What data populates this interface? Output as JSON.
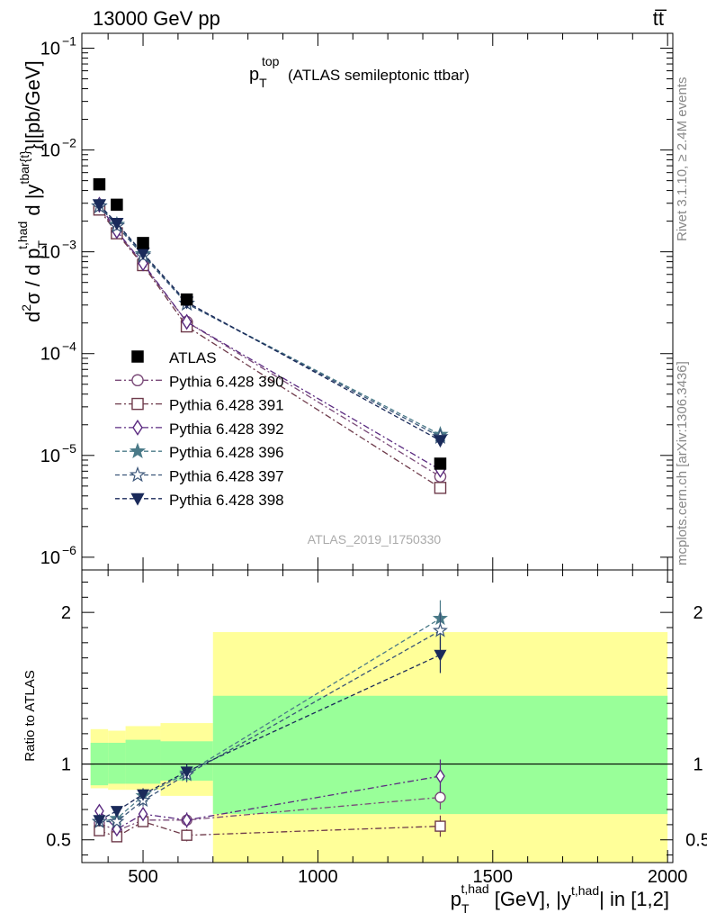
{
  "header": {
    "left": "13000 GeV pp",
    "right": "tt̅"
  },
  "side": {
    "rivet": "Rivet 3.1.10, ≥ 2.4M events",
    "mcplots": "mcplots.cern.ch [arXiv:1306.3436]"
  },
  "chart_data": [
    {
      "type": "scatter",
      "panel": "main",
      "title": "p_T^top (ATLAS semileptonic ttbar)",
      "title_parts": {
        "main": "p",
        "sub": "T",
        "sup": "top",
        "rest": "(ATLAS semileptonic ttbar)"
      },
      "watermark": "ATLAS_2019_I1750330",
      "ylabel": "d²σ / d p_T^{t,had} d |y^{tbar{t}}| [pb/GeV]",
      "ylabel_parts": {
        "a": "d",
        "a_sup": "2",
        "b": "σ /  d p",
        "b_sub": "T",
        "b_sup": "t,had",
        "c": " d  |y",
        "c_sup": "tbar{t}",
        "d": "}|[pb/GeV]"
      },
      "yscale": "log",
      "xlim": [
        325,
        2015
      ],
      "ylim": [
        7.5e-07,
        0.14
      ],
      "yticks": [
        {
          "value": 1e-06,
          "base": "10",
          "exp": "−6"
        },
        {
          "value": 1e-05,
          "base": "10",
          "exp": "−5"
        },
        {
          "value": 0.0001,
          "base": "10",
          "exp": "−4"
        },
        {
          "value": 0.001,
          "base": "10",
          "exp": "−3"
        },
        {
          "value": 0.01,
          "base": "10",
          "exp": "−2"
        },
        {
          "value": 0.1,
          "base": "10",
          "exp": "−1"
        }
      ],
      "legend_position": "middle-left",
      "x": [
        375,
        425,
        500,
        625,
        1350
      ],
      "data": {
        "name": "ATLAS",
        "values": [
          0.0046,
          0.0029,
          0.00122,
          0.00034,
          8.3e-06
        ],
        "color": "#000000",
        "marker": "square-filled"
      },
      "series": [
        {
          "name": "Pythia 6.428 390",
          "values": [
            0.0027,
            0.00158,
            0.00075,
            0.000205,
            6.2e-06
          ],
          "color": "#7a4a78",
          "marker": "circle-open",
          "dash": "dashdot"
        },
        {
          "name": "Pythia 6.428 391",
          "values": [
            0.0026,
            0.00152,
            0.00074,
            0.000185,
            4.8e-06
          ],
          "color": "#6e3a4a",
          "marker": "square-open",
          "dash": "dashdot"
        },
        {
          "name": "Pythia 6.428 392",
          "values": [
            0.0029,
            0.0016,
            0.00077,
            0.000205,
            7.2e-06
          ],
          "color": "#5a2a80",
          "marker": "diamond-open",
          "dash": "dashdot"
        },
        {
          "name": "Pythia 6.428 396",
          "values": [
            0.0028,
            0.00185,
            0.00095,
            0.00031,
            1.6e-05
          ],
          "color": "#4a7a88",
          "marker": "star-filled",
          "dash": "dash"
        },
        {
          "name": "Pythia 6.428 397",
          "values": [
            0.0028,
            0.0018,
            0.00092,
            0.00031,
            1.52e-05
          ],
          "color": "#3a5578",
          "marker": "star-open",
          "dash": "dash"
        },
        {
          "name": "Pythia 6.428 398",
          "values": [
            0.0029,
            0.0019,
            0.00097,
            0.00032,
            1.4e-05
          ],
          "color": "#1a2a5a",
          "marker": "triangle-down-filled",
          "dash": "dash"
        }
      ]
    },
    {
      "type": "scatter",
      "panel": "ratio",
      "ylabel": "Ratio to ATLAS",
      "xlabel_parts": {
        "a": "p",
        "a_sub": "T",
        "a_sup": "t,had",
        "b": " [GeV], |y",
        "b_sup": "t,had",
        "c": "| in [1,2]"
      },
      "xlim": [
        325,
        2015
      ],
      "ylim": [
        0.35,
        2.28
      ],
      "xticks": [
        500,
        1000,
        1500,
        2000
      ],
      "xtick_labels": [
        "500",
        "1000",
        "1500",
        "2000"
      ],
      "yticks": [
        0.5,
        1,
        2
      ],
      "ytick_labels": [
        "0.5",
        "1",
        "2"
      ],
      "reference_line": 1,
      "bands": [
        {
          "x": [
            350,
            400
          ],
          "stat": [
            0.86,
            1.14
          ],
          "total": [
            0.84,
            1.23
          ]
        },
        {
          "x": [
            400,
            450
          ],
          "stat": [
            0.87,
            1.14
          ],
          "total": [
            0.83,
            1.22
          ]
        },
        {
          "x": [
            450,
            550
          ],
          "stat": [
            0.87,
            1.16
          ],
          "total": [
            0.83,
            1.25
          ]
        },
        {
          "x": [
            550,
            700
          ],
          "stat": [
            0.89,
            1.15
          ],
          "total": [
            0.79,
            1.27
          ]
        },
        {
          "x": [
            700,
            2000
          ],
          "stat": [
            0.67,
            1.45
          ],
          "total": [
            0.35,
            1.87
          ]
        }
      ],
      "x": [
        375,
        425,
        500,
        625,
        1350
      ],
      "series": [
        {
          "name": "Pythia 6.428 390",
          "values": [
            0.61,
            0.56,
            0.63,
            0.63,
            0.78
          ],
          "err": [
            0.02,
            0.02,
            0.03,
            0.05,
            0.08
          ]
        },
        {
          "name": "Pythia 6.428 391",
          "values": [
            0.56,
            0.52,
            0.62,
            0.53,
            0.59
          ],
          "err": [
            0.02,
            0.02,
            0.03,
            0.04,
            0.07
          ]
        },
        {
          "name": "Pythia 6.428 392",
          "values": [
            0.69,
            0.57,
            0.67,
            0.63,
            0.92
          ],
          "err": [
            0.02,
            0.02,
            0.03,
            0.05,
            0.11
          ]
        },
        {
          "name": "Pythia 6.428 396",
          "values": [
            0.62,
            0.64,
            0.79,
            0.94,
            1.96
          ],
          "err": [
            0.02,
            0.02,
            0.04,
            0.05,
            0.12
          ]
        },
        {
          "name": "Pythia 6.428 397",
          "values": [
            0.62,
            0.62,
            0.76,
            0.93,
            1.88
          ],
          "err": [
            0.02,
            0.02,
            0.04,
            0.05,
            0.12
          ]
        },
        {
          "name": "Pythia 6.428 398",
          "values": [
            0.63,
            0.69,
            0.8,
            0.95,
            1.72
          ],
          "err": [
            0.02,
            0.02,
            0.04,
            0.05,
            0.12
          ]
        }
      ]
    }
  ]
}
